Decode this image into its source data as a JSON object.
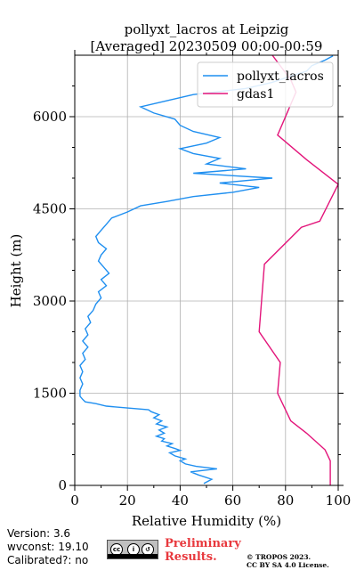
{
  "chart_data": {
    "type": "line",
    "title": [
      "pollyxt_lacros at Leipzig",
      "[Averaged] 20230509 00:00-00:59"
    ],
    "xlabel": "Relative Humidity (%)",
    "ylabel": "Height (m)",
    "xlim": [
      0,
      100
    ],
    "ylim": [
      0,
      7000
    ],
    "xticks": [
      0,
      20,
      40,
      60,
      80,
      100
    ],
    "yticks": [
      0,
      1500,
      3000,
      4500,
      6000
    ],
    "grid": true,
    "legend_position": "top-right",
    "series": [
      {
        "name": "pollyxt_lacros",
        "color": "#1f8ff0",
        "points": [
          [
            49,
            30
          ],
          [
            52,
            100
          ],
          [
            47,
            170
          ],
          [
            44,
            220
          ],
          [
            48,
            240
          ],
          [
            54,
            270
          ],
          [
            46,
            310
          ],
          [
            42,
            350
          ],
          [
            40,
            400
          ],
          [
            42,
            430
          ],
          [
            38,
            480
          ],
          [
            36,
            530
          ],
          [
            40,
            570
          ],
          [
            38,
            600
          ],
          [
            35,
            640
          ],
          [
            37,
            680
          ],
          [
            33,
            720
          ],
          [
            34,
            760
          ],
          [
            31,
            800
          ],
          [
            34,
            850
          ],
          [
            32,
            900
          ],
          [
            35,
            950
          ],
          [
            31,
            1000
          ],
          [
            33,
            1050
          ],
          [
            30,
            1100
          ],
          [
            32,
            1150
          ],
          [
            29,
            1200
          ],
          [
            28,
            1230
          ],
          [
            20,
            1260
          ],
          [
            12,
            1290
          ],
          [
            8,
            1330
          ],
          [
            4,
            1360
          ],
          [
            3,
            1400
          ],
          [
            2,
            1450
          ],
          [
            2,
            1550
          ],
          [
            3,
            1650
          ],
          [
            2,
            1750
          ],
          [
            3,
            1850
          ],
          [
            2,
            1950
          ],
          [
            4,
            2050
          ],
          [
            3,
            2150
          ],
          [
            5,
            2250
          ],
          [
            3,
            2350
          ],
          [
            5,
            2450
          ],
          [
            4,
            2550
          ],
          [
            6,
            2650
          ],
          [
            5,
            2750
          ],
          [
            7,
            2850
          ],
          [
            8,
            2950
          ],
          [
            10,
            3050
          ],
          [
            9,
            3150
          ],
          [
            12,
            3250
          ],
          [
            10,
            3350
          ],
          [
            13,
            3450
          ],
          [
            11,
            3550
          ],
          [
            9,
            3650
          ],
          [
            10,
            3750
          ],
          [
            12,
            3850
          ],
          [
            9,
            3950
          ],
          [
            8,
            4050
          ],
          [
            10,
            4150
          ],
          [
            12,
            4250
          ],
          [
            14,
            4350
          ],
          [
            20,
            4450
          ],
          [
            25,
            4550
          ],
          [
            35,
            4620
          ],
          [
            45,
            4700
          ],
          [
            60,
            4770
          ],
          [
            70,
            4850
          ],
          [
            55,
            4920
          ],
          [
            75,
            5000
          ],
          [
            45,
            5080
          ],
          [
            65,
            5150
          ],
          [
            50,
            5230
          ],
          [
            55,
            5320
          ],
          [
            45,
            5400
          ],
          [
            40,
            5480
          ],
          [
            50,
            5570
          ],
          [
            55,
            5660
          ],
          [
            45,
            5760
          ],
          [
            40,
            5860
          ],
          [
            38,
            5960
          ],
          [
            30,
            6060
          ],
          [
            25,
            6160
          ],
          [
            35,
            6260
          ],
          [
            45,
            6360
          ],
          [
            65,
            6460
          ],
          [
            75,
            6560
          ],
          [
            82,
            6660
          ],
          [
            88,
            6740
          ],
          [
            90,
            6830
          ],
          [
            95,
            6920
          ],
          [
            98,
            6990
          ]
        ]
      },
      {
        "name": "gdas1",
        "color": "#e3147a",
        "points": [
          [
            97,
            0
          ],
          [
            97,
            400
          ],
          [
            95,
            580
          ],
          [
            88,
            850
          ],
          [
            82,
            1050
          ],
          [
            77,
            1500
          ],
          [
            78,
            2000
          ],
          [
            70,
            2500
          ],
          [
            72,
            3600
          ],
          [
            86,
            4200
          ],
          [
            93,
            4300
          ],
          [
            100,
            4900
          ],
          [
            88,
            5300
          ],
          [
            77,
            5700
          ],
          [
            80,
            6000
          ],
          [
            84,
            6400
          ],
          [
            82,
            6600
          ],
          [
            75,
            7000
          ]
        ]
      }
    ]
  },
  "footer": {
    "version": "Version: 3.6",
    "wvconst": "wvconst:  19.10",
    "calibrated": "Calibrated?: no",
    "preliminary_line1": "Preliminary",
    "preliminary_line2": "Results.",
    "copyright_line1": "© TROPOS 2023.",
    "copyright_line2": "CC BY SA 4.0 License."
  }
}
